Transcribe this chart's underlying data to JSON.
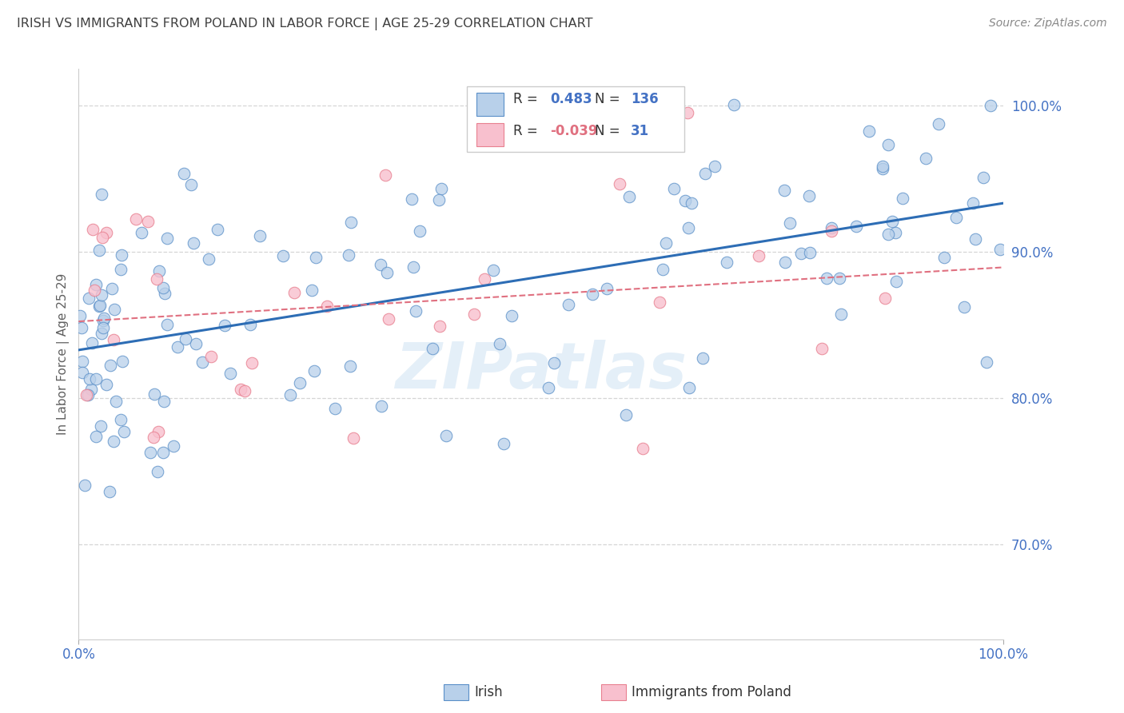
{
  "title": "IRISH VS IMMIGRANTS FROM POLAND IN LABOR FORCE | AGE 25-29 CORRELATION CHART",
  "source": "Source: ZipAtlas.com",
  "ylabel": "In Labor Force | Age 25-29",
  "xlim": [
    0.0,
    1.0
  ],
  "ylim": [
    0.635,
    1.025
  ],
  "yticks": [
    0.7,
    0.8,
    0.9,
    1.0
  ],
  "ytick_labels": [
    "70.0%",
    "80.0%",
    "90.0%",
    "100.0%"
  ],
  "blue_R": 0.483,
  "blue_N": 136,
  "pink_R": -0.039,
  "pink_N": 31,
  "blue_color": "#b8d0ea",
  "blue_edge_color": "#5a8fc8",
  "blue_line_color": "#2d6db5",
  "pink_color": "#f8c0ce",
  "pink_edge_color": "#e88090",
  "pink_line_color": "#e07080",
  "legend_blue_label": "Irish",
  "legend_pink_label": "Immigrants from Poland",
  "watermark": "ZIPatlas",
  "background_color": "#ffffff",
  "grid_color": "#cccccc",
  "title_color": "#404040",
  "source_color": "#888888",
  "axis_label_color": "#606060",
  "tick_label_color": "#4472c4",
  "legend_R_blue": "#4472c4",
  "legend_R_pink": "#e07080",
  "legend_N_color": "#4472c4"
}
